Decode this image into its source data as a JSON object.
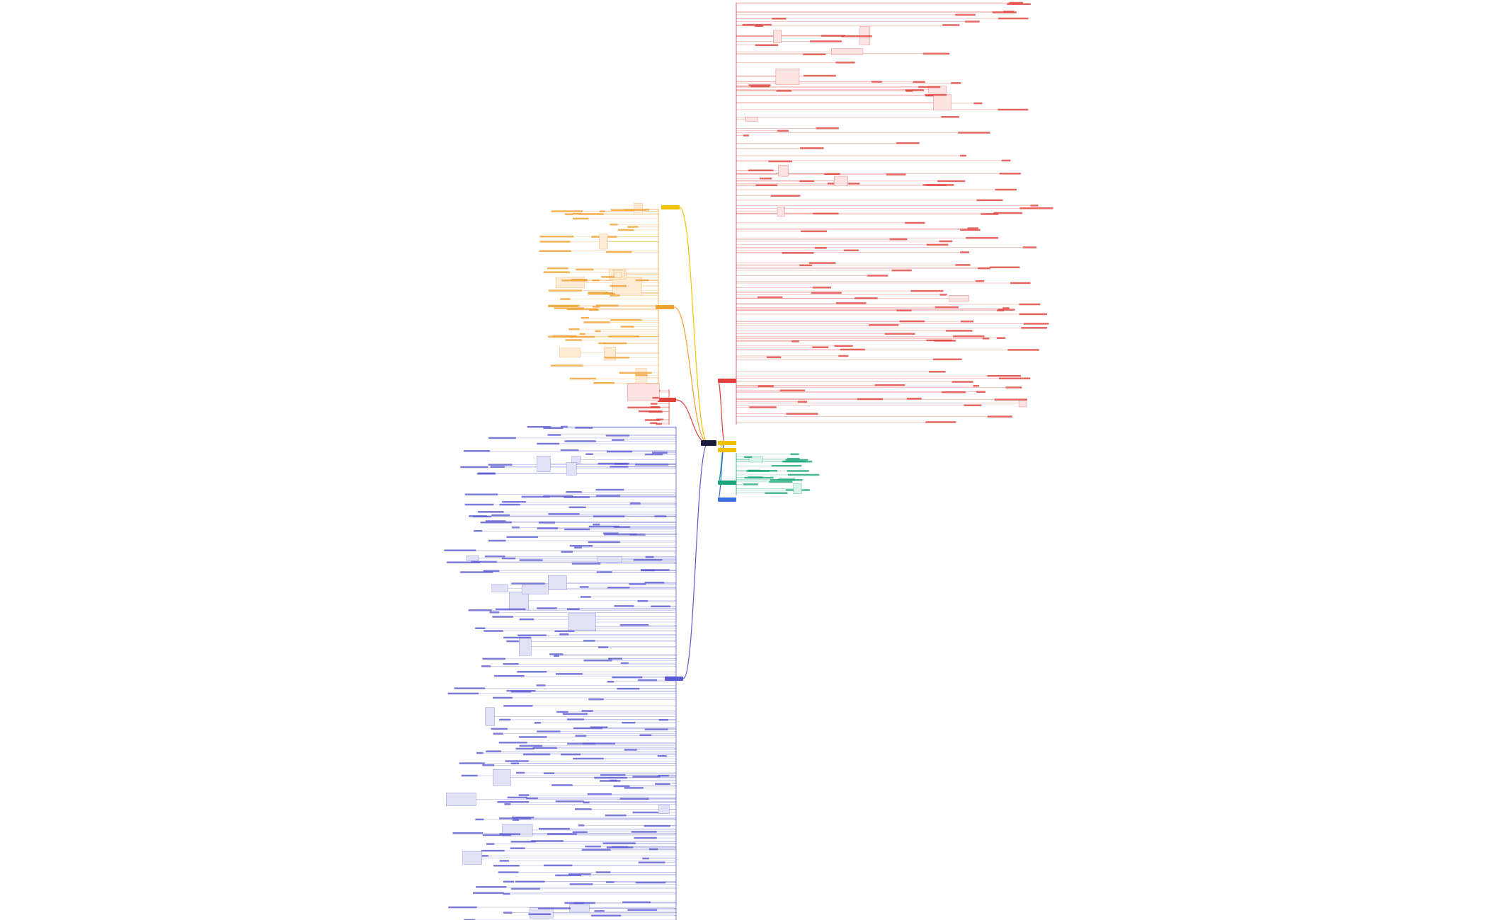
{
  "branches": [
    {
      "color": "#e0403a",
      "fill": "#fde3e1"
    },
    {
      "color": "#f0a030",
      "fill": "#fdebd6"
    },
    {
      "color": "#e0403a",
      "fill": "#fde3e1"
    },
    {
      "color": "#f2c200",
      "fill": "#fff3bf"
    },
    {
      "color": "#5a5ad0",
      "fill": "#e2e2f7"
    },
    {
      "color": "#1aa67a",
      "fill": "#d9f3ea"
    },
    {
      "color": "#3a6fe0",
      "fill": "#dde7fb"
    },
    {
      "color": "#f2c200",
      "fill": "#fff3bf"
    },
    {
      "color": "#f2c200",
      "fill": "#fff3bf"
    }
  ]
}
